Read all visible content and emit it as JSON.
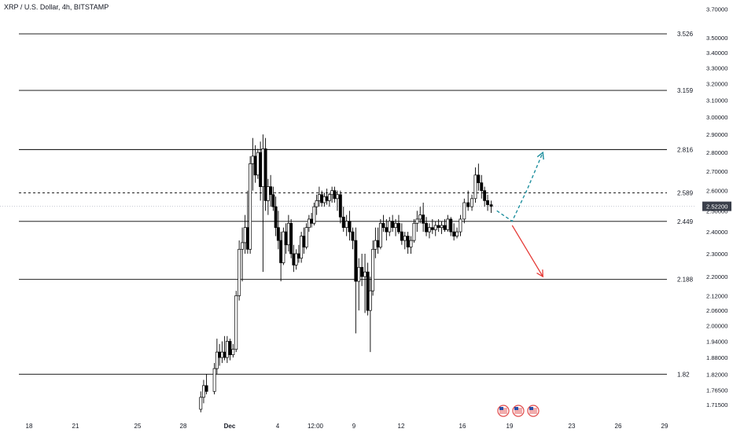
{
  "header": {
    "symbol_title": "XRP / U.S. Dollar, 4h, BITSTAMP"
  },
  "price_scale": {
    "labels": [
      "3.70000",
      "3.50000",
      "3.40000",
      "3.30000",
      "3.20000",
      "3.10000",
      "3.00000",
      "2.90000",
      "2.80000",
      "2.70000",
      "2.60000",
      "2.50000",
      "2.40000",
      "2.30000",
      "2.20000",
      "2.12000",
      "2.06000",
      "2.00000",
      "1.94000",
      "1.88000",
      "1.82000",
      "1.76500",
      "1.71500"
    ],
    "last_price_label": "2.52200"
  },
  "time_scale": {
    "labels": [
      "18",
      "21",
      "25",
      "28",
      "Dec",
      "4",
      "12:00",
      "9",
      "12",
      "16",
      "19",
      "23",
      "26",
      "29"
    ]
  },
  "levels": [
    {
      "label": "3.526",
      "value": 3.526
    },
    {
      "label": "3.159",
      "value": 3.159
    },
    {
      "label": "2.816",
      "value": 2.816
    },
    {
      "label": "2.589",
      "value": 2.589,
      "style": "dashed"
    },
    {
      "label": "2.449",
      "value": 2.449
    },
    {
      "label": "2.188",
      "value": 2.188
    },
    {
      "label": "1.82",
      "value": 1.82
    }
  ],
  "chart_data": {
    "type": "candlestick",
    "title": "XRP / U.S. Dollar, 4h, BITSTAMP",
    "y_scale": "log",
    "ylim": [
      1.7,
      3.72
    ],
    "x_range": [
      "Nov 18",
      "Dec 29"
    ],
    "last_price": 2.522,
    "candles": [
      {
        "d": "Nov 29",
        "o": 1.7,
        "h": 1.76,
        "l": 1.69,
        "c": 1.74
      },
      {
        "d": "Nov 29",
        "o": 1.74,
        "h": 1.8,
        "l": 1.72,
        "c": 1.78
      },
      {
        "d": "Nov 29",
        "o": 1.78,
        "h": 1.82,
        "l": 1.75,
        "c": 1.76
      },
      {
        "d": "Nov 30",
        "o": 1.76,
        "h": 1.86,
        "l": 1.75,
        "c": 1.84
      },
      {
        "d": "Nov 30",
        "o": 1.84,
        "h": 1.95,
        "l": 1.82,
        "c": 1.9
      },
      {
        "d": "Nov 30",
        "o": 1.9,
        "h": 1.93,
        "l": 1.85,
        "c": 1.88
      },
      {
        "d": "Nov 30",
        "o": 1.88,
        "h": 1.94,
        "l": 1.86,
        "c": 1.9
      },
      {
        "d": "Nov 30",
        "o": 1.9,
        "h": 1.96,
        "l": 1.87,
        "c": 1.88
      },
      {
        "d": "Nov 30",
        "o": 1.88,
        "h": 1.96,
        "l": 1.86,
        "c": 1.94
      },
      {
        "d": "Dec 1",
        "o": 1.94,
        "h": 1.95,
        "l": 1.87,
        "c": 1.89
      },
      {
        "d": "Dec 1",
        "o": 1.89,
        "h": 1.93,
        "l": 1.88,
        "c": 1.91
      },
      {
        "d": "Dec 1",
        "o": 1.91,
        "h": 2.14,
        "l": 1.9,
        "c": 2.12
      },
      {
        "d": "Dec 1",
        "o": 2.12,
        "h": 2.36,
        "l": 2.1,
        "c": 2.32
      },
      {
        "d": "Dec 1",
        "o": 2.32,
        "h": 2.42,
        "l": 2.18,
        "c": 2.35
      },
      {
        "d": "Dec 2",
        "o": 2.35,
        "h": 2.48,
        "l": 2.3,
        "c": 2.42
      },
      {
        "d": "Dec 2",
        "o": 2.42,
        "h": 2.6,
        "l": 2.3,
        "c": 2.32
      },
      {
        "d": "Dec 2",
        "o": 2.32,
        "h": 2.78,
        "l": 2.3,
        "c": 2.74
      },
      {
        "d": "Dec 2",
        "o": 2.74,
        "h": 2.88,
        "l": 2.6,
        "c": 2.78
      },
      {
        "d": "Dec 2",
        "o": 2.78,
        "h": 2.84,
        "l": 2.64,
        "c": 2.68
      },
      {
        "d": "Dec 2",
        "o": 2.68,
        "h": 2.82,
        "l": 2.66,
        "c": 2.8
      },
      {
        "d": "Dec 3",
        "o": 2.8,
        "h": 2.86,
        "l": 2.55,
        "c": 2.62
      },
      {
        "d": "Dec 3",
        "o": 2.62,
        "h": 2.9,
        "l": 2.22,
        "c": 2.82
      },
      {
        "d": "Dec 3",
        "o": 2.82,
        "h": 2.88,
        "l": 2.5,
        "c": 2.55
      },
      {
        "d": "Dec 3",
        "o": 2.55,
        "h": 2.66,
        "l": 2.48,
        "c": 2.62
      },
      {
        "d": "Dec 3",
        "o": 2.62,
        "h": 2.68,
        "l": 2.52,
        "c": 2.58
      },
      {
        "d": "Dec 3",
        "o": 2.58,
        "h": 2.62,
        "l": 2.5,
        "c": 2.52
      },
      {
        "d": "Dec 4",
        "o": 2.52,
        "h": 2.57,
        "l": 2.38,
        "c": 2.42
      },
      {
        "d": "Dec 4",
        "o": 2.42,
        "h": 2.5,
        "l": 2.32,
        "c": 2.36
      },
      {
        "d": "Dec 4",
        "o": 2.36,
        "h": 2.4,
        "l": 2.18,
        "c": 2.26
      },
      {
        "d": "Dec 4",
        "o": 2.26,
        "h": 2.42,
        "l": 2.25,
        "c": 2.4
      },
      {
        "d": "Dec 4",
        "o": 2.4,
        "h": 2.44,
        "l": 2.3,
        "c": 2.34
      },
      {
        "d": "Dec 4",
        "o": 2.34,
        "h": 2.48,
        "l": 2.31,
        "c": 2.44
      },
      {
        "d": "Dec 5",
        "o": 2.44,
        "h": 2.46,
        "l": 2.28,
        "c": 2.3
      },
      {
        "d": "Dec 5",
        "o": 2.3,
        "h": 2.34,
        "l": 2.22,
        "c": 2.25
      },
      {
        "d": "Dec 5",
        "o": 2.25,
        "h": 2.32,
        "l": 2.23,
        "c": 2.3
      },
      {
        "d": "Dec 5",
        "o": 2.3,
        "h": 2.34,
        "l": 2.26,
        "c": 2.28
      },
      {
        "d": "Dec 5",
        "o": 2.28,
        "h": 2.4,
        "l": 2.26,
        "c": 2.38
      },
      {
        "d": "Dec 5",
        "o": 2.38,
        "h": 2.42,
        "l": 2.3,
        "c": 2.33
      },
      {
        "d": "Dec 6",
        "o": 2.33,
        "h": 2.44,
        "l": 2.32,
        "c": 2.42
      },
      {
        "d": "Dec 6",
        "o": 2.42,
        "h": 2.48,
        "l": 2.4,
        "c": 2.46
      },
      {
        "d": "Dec 6",
        "o": 2.46,
        "h": 2.49,
        "l": 2.42,
        "c": 2.44
      },
      {
        "d": "Dec 6",
        "o": 2.44,
        "h": 2.54,
        "l": 2.43,
        "c": 2.52
      },
      {
        "d": "Dec 6",
        "o": 2.52,
        "h": 2.58,
        "l": 2.48,
        "c": 2.55
      },
      {
        "d": "Dec 6",
        "o": 2.55,
        "h": 2.62,
        "l": 2.52,
        "c": 2.58
      },
      {
        "d": "Dec 7",
        "o": 2.58,
        "h": 2.6,
        "l": 2.52,
        "c": 2.54
      },
      {
        "d": "Dec 7",
        "o": 2.54,
        "h": 2.59,
        "l": 2.52,
        "c": 2.57
      },
      {
        "d": "Dec 7",
        "o": 2.57,
        "h": 2.61,
        "l": 2.53,
        "c": 2.55
      },
      {
        "d": "Dec 7",
        "o": 2.55,
        "h": 2.59,
        "l": 2.52,
        "c": 2.58
      },
      {
        "d": "Dec 7",
        "o": 2.58,
        "h": 2.62,
        "l": 2.54,
        "c": 2.6
      },
      {
        "d": "Dec 7",
        "o": 2.6,
        "h": 2.62,
        "l": 2.54,
        "c": 2.56
      },
      {
        "d": "Dec 8",
        "o": 2.56,
        "h": 2.6,
        "l": 2.5,
        "c": 2.58
      },
      {
        "d": "Dec 8",
        "o": 2.58,
        "h": 2.6,
        "l": 2.44,
        "c": 2.47
      },
      {
        "d": "Dec 8",
        "o": 2.47,
        "h": 2.52,
        "l": 2.4,
        "c": 2.42
      },
      {
        "d": "Dec 8",
        "o": 2.42,
        "h": 2.48,
        "l": 2.38,
        "c": 2.45
      },
      {
        "d": "Dec 8",
        "o": 2.45,
        "h": 2.5,
        "l": 2.36,
        "c": 2.4
      },
      {
        "d": "Dec 9",
        "o": 2.4,
        "h": 2.42,
        "l": 2.32,
        "c": 2.36
      },
      {
        "d": "Dec 9",
        "o": 2.36,
        "h": 2.42,
        "l": 1.97,
        "c": 2.18
      },
      {
        "d": "Dec 9",
        "o": 2.18,
        "h": 2.28,
        "l": 2.06,
        "c": 2.24
      },
      {
        "d": "Dec 9",
        "o": 2.24,
        "h": 2.3,
        "l": 2.16,
        "c": 2.2
      },
      {
        "d": "Dec 9",
        "o": 2.2,
        "h": 2.3,
        "l": 2.05,
        "c": 2.22
      },
      {
        "d": "Dec 10",
        "o": 2.22,
        "h": 2.26,
        "l": 2.04,
        "c": 2.06
      },
      {
        "d": "Dec 10",
        "o": 2.06,
        "h": 2.2,
        "l": 1.9,
        "c": 2.14
      },
      {
        "d": "Dec 10",
        "o": 2.14,
        "h": 2.36,
        "l": 2.12,
        "c": 2.32
      },
      {
        "d": "Dec 10",
        "o": 2.32,
        "h": 2.42,
        "l": 2.28,
        "c": 2.36
      },
      {
        "d": "Dec 10",
        "o": 2.36,
        "h": 2.42,
        "l": 2.3,
        "c": 2.33
      },
      {
        "d": "Dec 10",
        "o": 2.33,
        "h": 2.46,
        "l": 2.32,
        "c": 2.44
      },
      {
        "d": "Dec 11",
        "o": 2.44,
        "h": 2.48,
        "l": 2.4,
        "c": 2.42
      },
      {
        "d": "Dec 11",
        "o": 2.42,
        "h": 2.46,
        "l": 2.36,
        "c": 2.4
      },
      {
        "d": "Dec 11",
        "o": 2.4,
        "h": 2.47,
        "l": 2.38,
        "c": 2.45
      },
      {
        "d": "Dec 11",
        "o": 2.45,
        "h": 2.48,
        "l": 2.4,
        "c": 2.42
      },
      {
        "d": "Dec 11",
        "o": 2.42,
        "h": 2.46,
        "l": 2.38,
        "c": 2.44
      },
      {
        "d": "Dec 12",
        "o": 2.44,
        "h": 2.48,
        "l": 2.39,
        "c": 2.4
      },
      {
        "d": "Dec 12",
        "o": 2.4,
        "h": 2.44,
        "l": 2.34,
        "c": 2.36
      },
      {
        "d": "Dec 12",
        "o": 2.36,
        "h": 2.4,
        "l": 2.32,
        "c": 2.38
      },
      {
        "d": "Dec 12",
        "o": 2.38,
        "h": 2.4,
        "l": 2.3,
        "c": 2.33
      },
      {
        "d": "Dec 12",
        "o": 2.33,
        "h": 2.38,
        "l": 2.3,
        "c": 2.36
      },
      {
        "d": "Dec 13",
        "o": 2.36,
        "h": 2.46,
        "l": 2.35,
        "c": 2.44
      },
      {
        "d": "Dec 13",
        "o": 2.44,
        "h": 2.5,
        "l": 2.4,
        "c": 2.46
      },
      {
        "d": "Dec 13",
        "o": 2.46,
        "h": 2.52,
        "l": 2.44,
        "c": 2.48
      },
      {
        "d": "Dec 13",
        "o": 2.48,
        "h": 2.54,
        "l": 2.4,
        "c": 2.44
      },
      {
        "d": "Dec 13",
        "o": 2.44,
        "h": 2.47,
        "l": 2.38,
        "c": 2.4
      },
      {
        "d": "Dec 14",
        "o": 2.4,
        "h": 2.44,
        "l": 2.37,
        "c": 2.42
      },
      {
        "d": "Dec 14",
        "o": 2.42,
        "h": 2.46,
        "l": 2.39,
        "c": 2.41
      },
      {
        "d": "Dec 14",
        "o": 2.41,
        "h": 2.45,
        "l": 2.38,
        "c": 2.43
      },
      {
        "d": "Dec 14",
        "o": 2.43,
        "h": 2.46,
        "l": 2.4,
        "c": 2.42
      },
      {
        "d": "Dec 14",
        "o": 2.42,
        "h": 2.45,
        "l": 2.39,
        "c": 2.43
      },
      {
        "d": "Dec 15",
        "o": 2.43,
        "h": 2.46,
        "l": 2.4,
        "c": 2.41
      },
      {
        "d": "Dec 15",
        "o": 2.41,
        "h": 2.48,
        "l": 2.4,
        "c": 2.46
      },
      {
        "d": "Dec 15",
        "o": 2.46,
        "h": 2.47,
        "l": 2.38,
        "c": 2.4
      },
      {
        "d": "Dec 15",
        "o": 2.4,
        "h": 2.44,
        "l": 2.36,
        "c": 2.38
      },
      {
        "d": "Dec 15",
        "o": 2.38,
        "h": 2.42,
        "l": 2.37,
        "c": 2.4
      },
      {
        "d": "Dec 16",
        "o": 2.4,
        "h": 2.48,
        "l": 2.38,
        "c": 2.46
      },
      {
        "d": "Dec 16",
        "o": 2.46,
        "h": 2.56,
        "l": 2.44,
        "c": 2.54
      },
      {
        "d": "Dec 16",
        "o": 2.54,
        "h": 2.6,
        "l": 2.5,
        "c": 2.52
      },
      {
        "d": "Dec 16",
        "o": 2.52,
        "h": 2.58,
        "l": 2.5,
        "c": 2.56
      },
      {
        "d": "Dec 17",
        "o": 2.56,
        "h": 2.72,
        "l": 2.54,
        "c": 2.68
      },
      {
        "d": "Dec 17",
        "o": 2.68,
        "h": 2.74,
        "l": 2.6,
        "c": 2.64
      },
      {
        "d": "Dec 17",
        "o": 2.64,
        "h": 2.68,
        "l": 2.56,
        "c": 2.6
      },
      {
        "d": "Dec 17",
        "o": 2.6,
        "h": 2.62,
        "l": 2.52,
        "c": 2.55
      },
      {
        "d": "Dec 17",
        "o": 2.55,
        "h": 2.58,
        "l": 2.5,
        "c": 2.53
      },
      {
        "d": "Dec 18",
        "o": 2.53,
        "h": 2.55,
        "l": 2.49,
        "c": 2.522
      }
    ],
    "levels": [
      3.526,
      3.159,
      2.816,
      2.589,
      2.449,
      2.188,
      1.82
    ],
    "projection": {
      "bullish": [
        {
          "d": "Dec 18",
          "y": 2.5
        },
        {
          "d": "Dec 19",
          "y": 2.45
        },
        {
          "d": "Dec 20",
          "y": 2.61
        },
        {
          "d": "Dec 21",
          "y": 2.8
        }
      ],
      "bearish": [
        {
          "d": "Dec 19",
          "y": 2.43
        },
        {
          "d": "Dec 21",
          "y": 2.2
        }
      ]
    },
    "colors": {
      "up": "#ffffff",
      "down": "#000000",
      "bullish_arrow": "#1e8f9e",
      "bearish_arrow": "#e53935",
      "level_line": "#000000"
    },
    "grid": false,
    "event_icons": 3
  }
}
